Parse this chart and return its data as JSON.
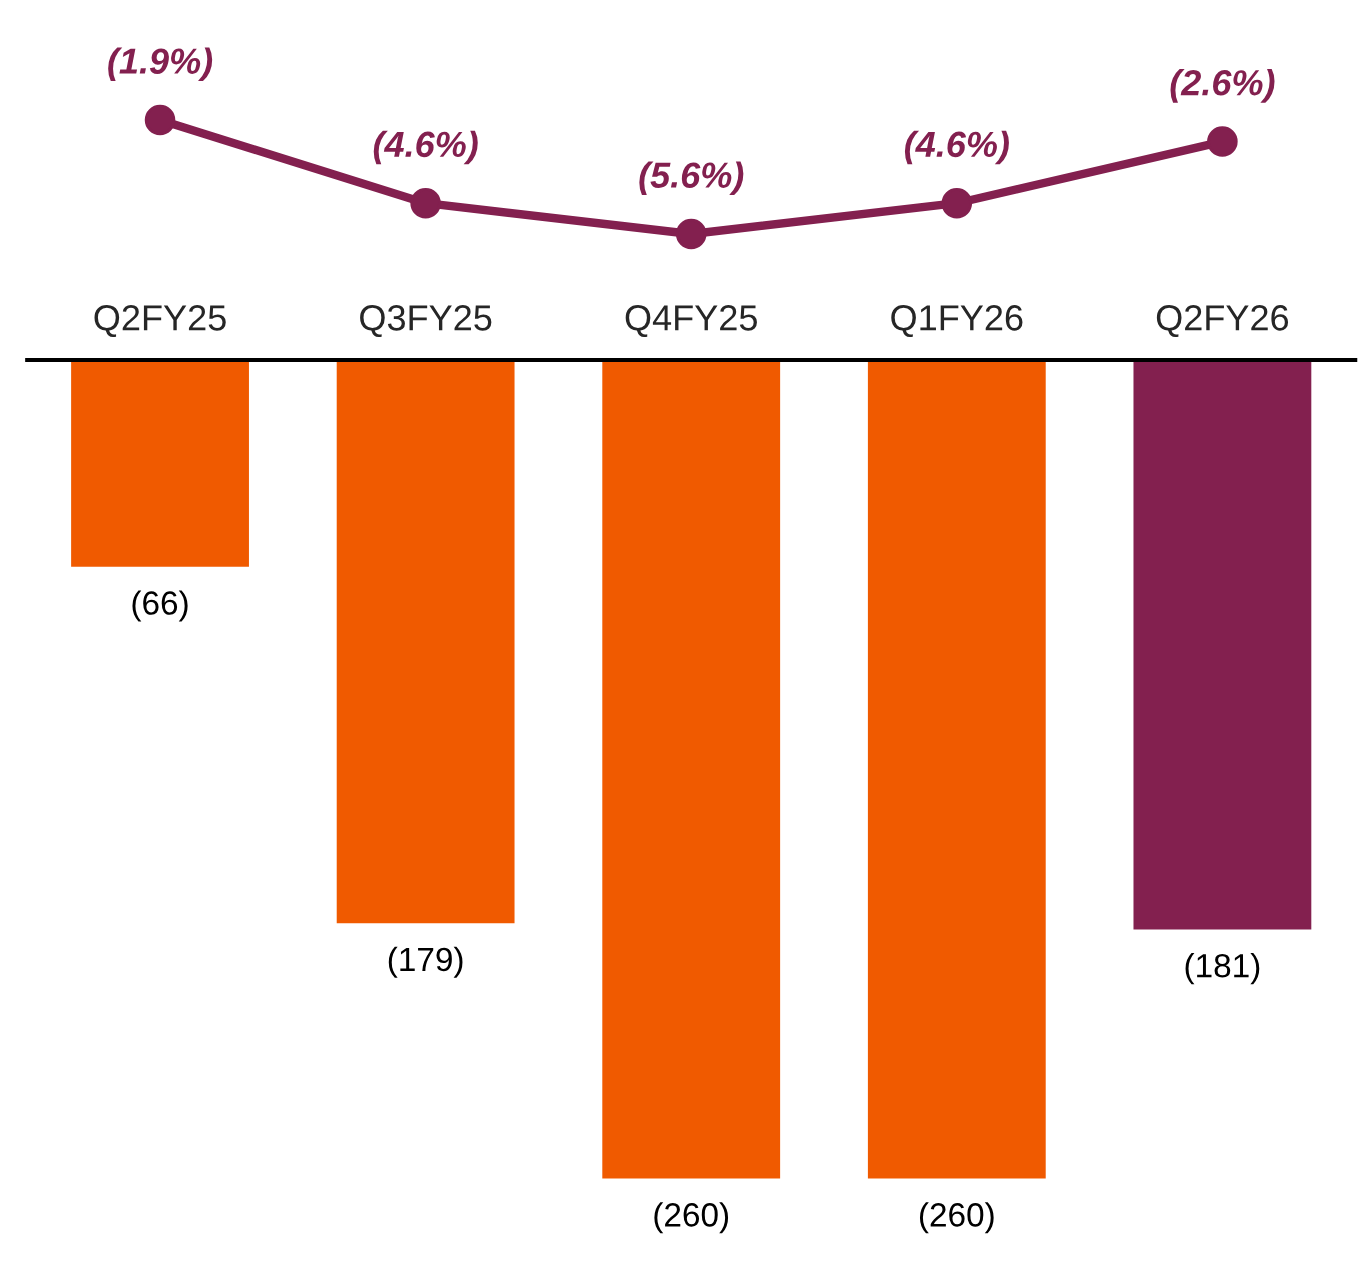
{
  "chart_data": [
    {
      "type": "line",
      "categories": [
        null,
        null,
        null,
        null,
        null
      ],
      "marker": "circle",
      "grid": false,
      "legend": false,
      "series": [
        {
          "color": "#83204f",
          "values": [
            -1.9,
            -4.6,
            -5.6,
            -4.6,
            -2.6
          ],
          "value_labels": [
            "(1.9%)",
            "(4.6%)",
            "(5.6%)",
            "(4.6%)",
            "(2.6%)"
          ]
        }
      ]
    },
    {
      "type": "bar",
      "categories": [
        "Q2FY25",
        "Q3FY25",
        "Q4FY25",
        "Q1FY26",
        "Q2FY26"
      ],
      "tick_labels": "x",
      "grid": false,
      "legend": false,
      "series": [
        {
          "colors": [
            "#f05a00",
            "#f05a00",
            "#f05a00",
            "#f05a00",
            "#83204f"
          ],
          "values": [
            -66,
            -179,
            -260,
            -260,
            -181
          ],
          "value_labels": [
            "(66)",
            "(179)",
            "(260)",
            "(260)",
            "(181)"
          ]
        }
      ]
    }
  ]
}
